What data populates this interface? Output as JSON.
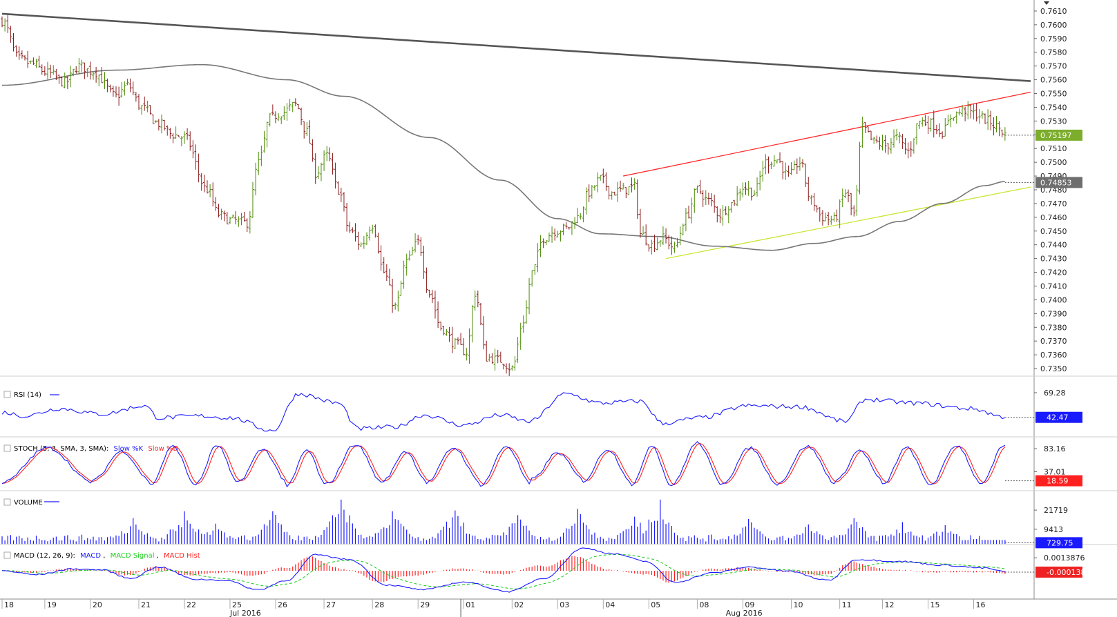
{
  "chart_data": [
    {
      "type": "candlestick",
      "panel": "price",
      "ylim": [
        0.7345,
        0.7617
      ],
      "ticks": [
        "0.7610",
        "0.7600",
        "0.7590",
        "0.7580",
        "0.7570",
        "0.7560",
        "0.7550",
        "0.7540",
        "0.7530",
        "0.7520",
        "0.7510",
        "0.7500",
        "0.7490",
        "0.7480",
        "0.7470",
        "0.7460",
        "0.7450",
        "0.7440",
        "0.7430",
        "0.7420",
        "0.7410",
        "0.7400",
        "0.7390",
        "0.7380",
        "0.7370",
        "0.7360",
        "0.7350"
      ],
      "anchors": [
        {
          "bar": 0,
          "close": 0.7603
        },
        {
          "bar": 6,
          "close": 0.7575
        },
        {
          "bar": 10,
          "close": 0.7572
        },
        {
          "bar": 16,
          "close": 0.7565
        },
        {
          "bar": 22,
          "close": 0.7558
        },
        {
          "bar": 27,
          "close": 0.757
        },
        {
          "bar": 32,
          "close": 0.7566
        },
        {
          "bar": 40,
          "close": 0.7548
        },
        {
          "bar": 44,
          "close": 0.7556
        },
        {
          "bar": 49,
          "close": 0.754
        },
        {
          "bar": 55,
          "close": 0.7528
        },
        {
          "bar": 60,
          "close": 0.752
        },
        {
          "bar": 64,
          "close": 0.7518
        },
        {
          "bar": 72,
          "close": 0.748
        },
        {
          "bar": 76,
          "close": 0.7462
        },
        {
          "bar": 80,
          "close": 0.7458
        },
        {
          "bar": 86,
          "close": 0.7456
        },
        {
          "bar": 90,
          "close": 0.75
        },
        {
          "bar": 94,
          "close": 0.7532
        },
        {
          "bar": 98,
          "close": 0.7536
        },
        {
          "bar": 103,
          "close": 0.7542
        },
        {
          "bar": 107,
          "close": 0.7522
        },
        {
          "bar": 110,
          "close": 0.7492
        },
        {
          "bar": 114,
          "close": 0.7505
        },
        {
          "bar": 118,
          "close": 0.748
        },
        {
          "bar": 122,
          "close": 0.745
        },
        {
          "bar": 126,
          "close": 0.744
        },
        {
          "bar": 130,
          "close": 0.7455
        },
        {
          "bar": 134,
          "close": 0.742
        },
        {
          "bar": 138,
          "close": 0.7395
        },
        {
          "bar": 142,
          "close": 0.7428
        },
        {
          "bar": 146,
          "close": 0.7442
        },
        {
          "bar": 150,
          "close": 0.7405
        },
        {
          "bar": 154,
          "close": 0.738
        },
        {
          "bar": 159,
          "close": 0.7368
        },
        {
          "bar": 163,
          "close": 0.7362
        },
        {
          "bar": 166,
          "close": 0.7405
        },
        {
          "bar": 170,
          "close": 0.7358
        },
        {
          "bar": 175,
          "close": 0.7356
        },
        {
          "bar": 179,
          "close": 0.735
        },
        {
          "bar": 183,
          "close": 0.7385
        },
        {
          "bar": 186,
          "close": 0.742
        },
        {
          "bar": 190,
          "close": 0.7445
        },
        {
          "bar": 194,
          "close": 0.745
        },
        {
          "bar": 198,
          "close": 0.7452
        },
        {
          "bar": 202,
          "close": 0.746
        },
        {
          "bar": 206,
          "close": 0.7478
        },
        {
          "bar": 210,
          "close": 0.7488
        },
        {
          "bar": 214,
          "close": 0.7478
        },
        {
          "bar": 218,
          "close": 0.748
        },
        {
          "bar": 222,
          "close": 0.7482
        },
        {
          "bar": 224,
          "close": 0.7448
        },
        {
          "bar": 228,
          "close": 0.744
        },
        {
          "bar": 232,
          "close": 0.7445
        },
        {
          "bar": 236,
          "close": 0.7438
        },
        {
          "bar": 240,
          "close": 0.746
        },
        {
          "bar": 244,
          "close": 0.748
        },
        {
          "bar": 248,
          "close": 0.7472
        },
        {
          "bar": 252,
          "close": 0.7462
        },
        {
          "bar": 256,
          "close": 0.747
        },
        {
          "bar": 260,
          "close": 0.7482
        },
        {
          "bar": 264,
          "close": 0.7478
        },
        {
          "bar": 268,
          "close": 0.75
        },
        {
          "bar": 272,
          "close": 0.7502
        },
        {
          "bar": 276,
          "close": 0.749
        },
        {
          "bar": 280,
          "close": 0.75
        },
        {
          "bar": 284,
          "close": 0.7472
        },
        {
          "bar": 288,
          "close": 0.746
        },
        {
          "bar": 292,
          "close": 0.7458
        },
        {
          "bar": 296,
          "close": 0.7478
        },
        {
          "bar": 299,
          "close": 0.7462
        },
        {
          "bar": 302,
          "close": 0.7525
        },
        {
          "bar": 306,
          "close": 0.7515
        },
        {
          "bar": 310,
          "close": 0.7512
        },
        {
          "bar": 314,
          "close": 0.7518
        },
        {
          "bar": 318,
          "close": 0.7508
        },
        {
          "bar": 322,
          "close": 0.753
        },
        {
          "bar": 326,
          "close": 0.7528
        },
        {
          "bar": 330,
          "close": 0.7522
        },
        {
          "bar": 334,
          "close": 0.7535
        },
        {
          "bar": 338,
          "close": 0.7538
        },
        {
          "bar": 342,
          "close": 0.7535
        },
        {
          "bar": 346,
          "close": 0.753
        },
        {
          "bar": 350,
          "close": 0.7525
        },
        {
          "bar": 352,
          "close": 0.752
        }
      ],
      "ma_anchors": [
        {
          "bar": 0,
          "value": 0.7556
        },
        {
          "bar": 40,
          "value": 0.7567
        },
        {
          "bar": 70,
          "value": 0.7571
        },
        {
          "bar": 100,
          "value": 0.756
        },
        {
          "bar": 120,
          "value": 0.7548
        },
        {
          "bar": 150,
          "value": 0.7518
        },
        {
          "bar": 175,
          "value": 0.7487
        },
        {
          "bar": 195,
          "value": 0.7459
        },
        {
          "bar": 210,
          "value": 0.7448
        },
        {
          "bar": 230,
          "value": 0.7446
        },
        {
          "bar": 250,
          "value": 0.7439
        },
        {
          "bar": 270,
          "value": 0.7436
        },
        {
          "bar": 285,
          "value": 0.7441
        },
        {
          "bar": 300,
          "value": 0.7446
        },
        {
          "bar": 315,
          "value": 0.7457
        },
        {
          "bar": 330,
          "value": 0.747
        },
        {
          "bar": 345,
          "value": 0.7483
        },
        {
          "bar": 352,
          "value": 0.7486
        }
      ],
      "trendlines": [
        {
          "color": "#555555",
          "from": {
            "bar": 0,
            "value": 0.7608
          },
          "to": {
            "bar": 361,
            "value": 0.7559
          }
        },
        {
          "color": "#ff2a2a",
          "from": {
            "bar": 218,
            "value": 0.749
          },
          "to": {
            "bar": 361,
            "value": 0.7551
          }
        },
        {
          "color": "#c8e632",
          "from": {
            "bar": 233,
            "value": 0.743
          },
          "to": {
            "bar": 361,
            "value": 0.7482
          }
        }
      ],
      "last_price": "0.75197",
      "ma_label": "0.74853",
      "bar_count": 353,
      "bar_total": 361,
      "up_color": "#4a8a00",
      "down_color": "#8b1a1a"
    },
    {
      "type": "line",
      "panel": "rsi",
      "legend": "RSI (14)",
      "color": "#1a1aff",
      "ticks": [
        "69.28"
      ],
      "ylim": [
        22,
        76
      ],
      "last": "42.47",
      "anchors": [
        {
          "bar": 0,
          "value": 48
        },
        {
          "bar": 8,
          "value": 44
        },
        {
          "bar": 20,
          "value": 52
        },
        {
          "bar": 35,
          "value": 46
        },
        {
          "bar": 50,
          "value": 55
        },
        {
          "bar": 55,
          "value": 42
        },
        {
          "bar": 70,
          "value": 44
        },
        {
          "bar": 80,
          "value": 42
        },
        {
          "bar": 95,
          "value": 28
        },
        {
          "bar": 104,
          "value": 68
        },
        {
          "bar": 118,
          "value": 58
        },
        {
          "bar": 125,
          "value": 30
        },
        {
          "bar": 138,
          "value": 32
        },
        {
          "bar": 148,
          "value": 45
        },
        {
          "bar": 162,
          "value": 34
        },
        {
          "bar": 175,
          "value": 45
        },
        {
          "bar": 185,
          "value": 38
        },
        {
          "bar": 198,
          "value": 68
        },
        {
          "bar": 210,
          "value": 58
        },
        {
          "bar": 224,
          "value": 60
        },
        {
          "bar": 232,
          "value": 36
        },
        {
          "bar": 245,
          "value": 42
        },
        {
          "bar": 262,
          "value": 55
        },
        {
          "bar": 280,
          "value": 54
        },
        {
          "bar": 296,
          "value": 38
        },
        {
          "bar": 303,
          "value": 62
        },
        {
          "bar": 320,
          "value": 58
        },
        {
          "bar": 340,
          "value": 52
        },
        {
          "bar": 352,
          "value": 43
        }
      ]
    },
    {
      "type": "line",
      "panel": "stoch",
      "legend": "STOCH (5, 3, SMA, 3, SMA):",
      "series": [
        {
          "name": "Slow %K",
          "color": "#1a1aff"
        },
        {
          "name": "Slow %D",
          "color": "#ff2020"
        }
      ],
      "ticks": [
        "83.16",
        "37.01"
      ],
      "ylim": [
        0,
        100
      ],
      "last": "18.59",
      "turns": [
        52,
        28,
        20,
        18,
        22,
        16,
        28,
        18,
        26,
        24,
        24,
        22,
        16,
        24,
        26,
        30,
        20,
        22,
        24,
        18,
        22,
        26,
        20,
        18,
        22,
        20,
        16,
        28
      ],
      "highs": [
        85,
        78,
        88,
        90,
        82,
        80,
        92,
        78,
        85,
        88,
        75,
        82,
        90,
        95,
        85,
        88,
        80,
        85,
        90,
        88,
        82,
        88,
        85,
        90,
        85,
        80,
        78,
        70
      ],
      "lows": [
        15,
        20,
        10,
        12,
        18,
        8,
        12,
        20,
        15,
        10,
        22,
        18,
        8,
        10,
        15,
        12,
        20,
        10,
        12,
        15,
        10,
        12,
        15,
        10,
        8,
        15,
        10,
        12
      ]
    },
    {
      "type": "bar",
      "panel": "volume",
      "legend": "VOLUME",
      "color": "#1a1aff",
      "ticks": [
        "21719",
        "9413"
      ],
      "ylim": [
        0,
        32000
      ],
      "last": "729.75",
      "spikes": [
        {
          "bar": 46,
          "value": 16500
        },
        {
          "bar": 64,
          "value": 21000
        },
        {
          "bar": 75,
          "value": 13000
        },
        {
          "bar": 95,
          "value": 21000
        },
        {
          "bar": 119,
          "value": 28500
        },
        {
          "bar": 137,
          "value": 21000
        },
        {
          "bar": 159,
          "value": 21500
        },
        {
          "bar": 181,
          "value": 18500
        },
        {
          "bar": 202,
          "value": 22500
        },
        {
          "bar": 222,
          "value": 17500
        },
        {
          "bar": 231,
          "value": 28500
        },
        {
          "bar": 262,
          "value": 16000
        },
        {
          "bar": 283,
          "value": 12500
        },
        {
          "bar": 299,
          "value": 16500
        },
        {
          "bar": 316,
          "value": 14000
        },
        {
          "bar": 331,
          "value": 12000
        },
        {
          "bar": 348,
          "value": 10500
        }
      ]
    },
    {
      "type": "line",
      "panel": "macd",
      "legend": "MACD (12, 26, 9):",
      "series": [
        {
          "name": "MACD",
          "color": "#1a1aff"
        },
        {
          "name": "MACD Signal",
          "color": "#22cc22"
        },
        {
          "name": "MACD Hist",
          "color": "#ff2020"
        }
      ],
      "ticks": [
        "0.0013876"
      ],
      "ylim": [
        -0.003,
        0.0025
      ],
      "last": "-0.000138",
      "anchors": [
        {
          "bar": 0,
          "value": 0.0
        },
        {
          "bar": 12,
          "value": -0.0004
        },
        {
          "bar": 25,
          "value": 0.0002
        },
        {
          "bar": 35,
          "value": 0.0001
        },
        {
          "bar": 45,
          "value": -0.0008
        },
        {
          "bar": 55,
          "value": 0.0004
        },
        {
          "bar": 68,
          "value": -0.0009
        },
        {
          "bar": 78,
          "value": -0.001
        },
        {
          "bar": 90,
          "value": -0.002
        },
        {
          "bar": 100,
          "value": -0.001
        },
        {
          "bar": 110,
          "value": 0.0017
        },
        {
          "bar": 122,
          "value": 0.0012
        },
        {
          "bar": 135,
          "value": -0.0015
        },
        {
          "bar": 148,
          "value": -0.002
        },
        {
          "bar": 162,
          "value": -0.0012
        },
        {
          "bar": 178,
          "value": -0.0022
        },
        {
          "bar": 190,
          "value": -0.0008
        },
        {
          "bar": 204,
          "value": 0.0024
        },
        {
          "bar": 215,
          "value": 0.0018
        },
        {
          "bar": 226,
          "value": 0.001
        },
        {
          "bar": 236,
          "value": -0.0012
        },
        {
          "bar": 250,
          "value": -0.0002
        },
        {
          "bar": 262,
          "value": 0.0004
        },
        {
          "bar": 275,
          "value": 0.0
        },
        {
          "bar": 290,
          "value": -0.001
        },
        {
          "bar": 300,
          "value": 0.0012
        },
        {
          "bar": 315,
          "value": 0.001
        },
        {
          "bar": 330,
          "value": 0.0006
        },
        {
          "bar": 345,
          "value": 0.0003
        },
        {
          "bar": 352,
          "value": -0.0001
        }
      ]
    }
  ],
  "x_axis": {
    "day_labels": [
      {
        "bar": 0,
        "label": "18"
      },
      {
        "bar": 15,
        "label": "19"
      },
      {
        "bar": 31,
        "label": "20"
      },
      {
        "bar": 48,
        "label": "21"
      },
      {
        "bar": 64,
        "label": "22"
      },
      {
        "bar": 80,
        "label": "25"
      },
      {
        "bar": 96,
        "label": "26"
      },
      {
        "bar": 113,
        "label": "27"
      },
      {
        "bar": 130,
        "label": "28"
      },
      {
        "bar": 146,
        "label": "29"
      },
      {
        "bar": 162,
        "label": "01"
      },
      {
        "bar": 179,
        "label": "02"
      },
      {
        "bar": 195,
        "label": "03"
      },
      {
        "bar": 211,
        "label": "04"
      },
      {
        "bar": 227,
        "label": "05"
      },
      {
        "bar": 244,
        "label": "08"
      },
      {
        "bar": 260,
        "label": "09"
      },
      {
        "bar": 277,
        "label": "10"
      },
      {
        "bar": 294,
        "label": "11"
      },
      {
        "bar": 309,
        "label": "12"
      },
      {
        "bar": 325,
        "label": "15"
      },
      {
        "bar": 341,
        "label": "16"
      }
    ],
    "month_labels": [
      {
        "bar": 80,
        "label": "Jul 2016"
      },
      {
        "bar": 254,
        "label": "Aug 2016"
      }
    ],
    "month_divider_bar": 161
  }
}
